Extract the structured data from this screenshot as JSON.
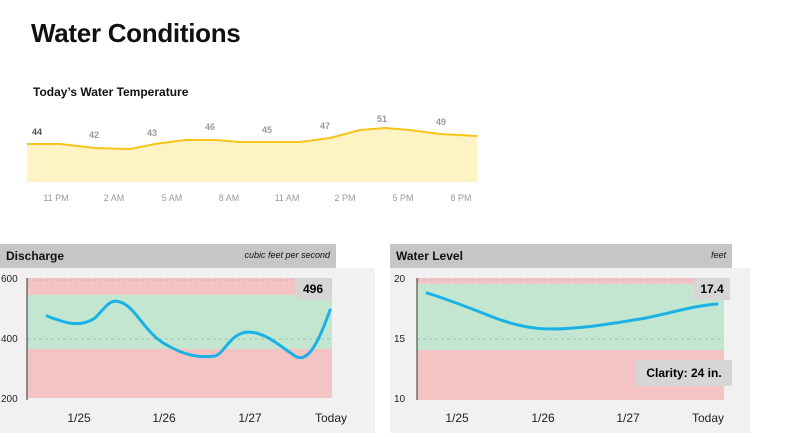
{
  "page_title": "Water Conditions",
  "temperature": {
    "title": "Today’s Water Temperature",
    "labels": [
      "44",
      "42",
      "43",
      "46",
      "45",
      "47",
      "51",
      "49"
    ],
    "x_ticks": [
      "11 PM",
      "2 AM",
      "5 AM",
      "8 AM",
      "11 AM",
      "2 PM",
      "5 PM",
      "8 PM"
    ],
    "colors": {
      "line": "#f5c518",
      "fill": "#fdf3c4",
      "text": "#9a9a9a"
    }
  },
  "discharge": {
    "title": "Discharge",
    "units": "cubic feet per second",
    "current_value": "496",
    "y_ticks": [
      "600",
      "400",
      "200"
    ],
    "x_ticks": [
      "1/25",
      "1/26",
      "1/27",
      "Today"
    ],
    "colors": {
      "line": "#19b2e6",
      "green": "#c3e6d0",
      "red": "#f4c4c4",
      "bg": "#f1f1f1"
    }
  },
  "water_level": {
    "title": "Water Level",
    "units": "feet",
    "current_value": "17.4",
    "clarity": "Clarity: 24 in.",
    "y_ticks": [
      "20",
      "15",
      "10"
    ],
    "x_ticks": [
      "1/25",
      "1/26",
      "1/27",
      "Today"
    ],
    "colors": {
      "line": "#19b2e6",
      "green": "#c3e6d0",
      "red": "#f4c4c4",
      "bg": "#f1f1f1"
    }
  }
}
